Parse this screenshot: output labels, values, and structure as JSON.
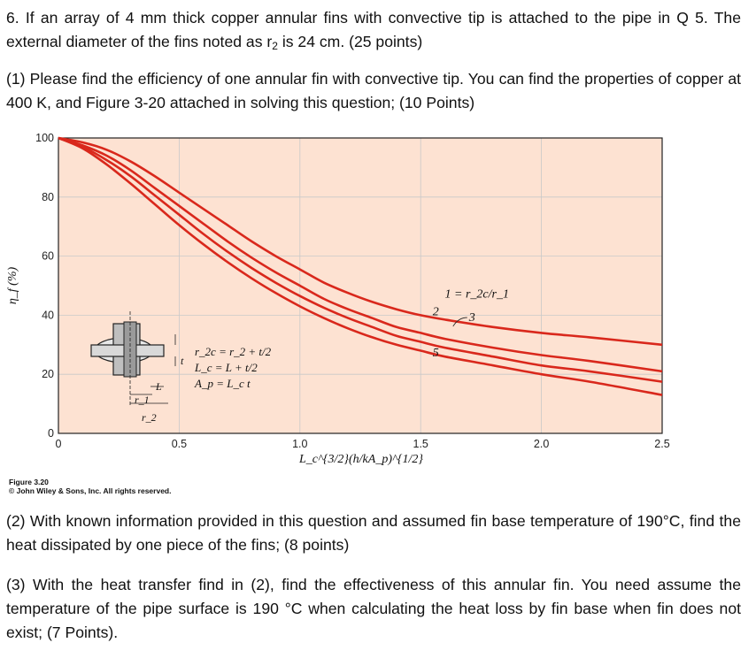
{
  "question": {
    "intro_a": "6. If an array of 4 mm thick copper annular fins with convective tip is attached to the pipe in Q 5. The external diameter of the fins noted as r",
    "intro_sub": "2",
    "intro_b": " is 24 cm. (25 points)",
    "part1": "(1) Please find the efficiency of one annular fin with convective tip. You can find the properties of copper at 400 K, and Figure 3-20 attached in solving this question;  (10 Points)",
    "part2": "(2) With known information provided in this question and assumed fin base temperature of 190°C, find the heat dissipated by one piece of the fins; (8 points)",
    "part3": "(3) With the heat transfer find in (2), find the effectiveness of this annular fin. You need assume the temperature of the pipe surface is 190 °C when calculating the heat loss by fin base when fin does not exist; (7 Points)."
  },
  "figure": {
    "label": "Figure 3.20",
    "credit": "© John Wiley & Sons, Inc. All rights reserved."
  },
  "chart_data": {
    "type": "line",
    "xlabel": "L_c^{3/2}(h/kA_p)^{1/2}",
    "ylabel": "η_f (%)",
    "xlim": [
      0,
      2.5
    ],
    "ylim": [
      0,
      100
    ],
    "x_ticks": [
      "0",
      "0.5",
      "1.0",
      "1.5",
      "2.0",
      "2.5"
    ],
    "y_ticks": [
      "0",
      "20",
      "40",
      "60",
      "80",
      "100"
    ],
    "grid": true,
    "background": "#fde2d2",
    "line_color": "#d9281c",
    "series": [
      {
        "name": "1",
        "x": [
          0,
          0.1,
          0.2,
          0.3,
          0.4,
          0.5,
          0.6,
          0.7,
          0.8,
          0.9,
          1.0,
          1.1,
          1.2,
          1.3,
          1.4,
          1.5,
          1.6,
          1.8,
          2.0,
          2.2,
          2.5
        ],
        "y": [
          100,
          98.5,
          96,
          92,
          87,
          81.5,
          76,
          70.5,
          65,
          60,
          55.5,
          51,
          47.5,
          44.5,
          42,
          40,
          38.5,
          36,
          34,
          32.5,
          30
        ]
      },
      {
        "name": "2",
        "x": [
          0,
          0.1,
          0.2,
          0.3,
          0.4,
          0.5,
          0.6,
          0.7,
          0.8,
          0.9,
          1.0,
          1.1,
          1.2,
          1.3,
          1.4,
          1.5,
          1.6,
          1.8,
          2.0,
          2.2,
          2.5
        ],
        "y": [
          100,
          97.5,
          94,
          89,
          83,
          77,
          71,
          65,
          59.5,
          54.5,
          50,
          45.5,
          42,
          39,
          36,
          34,
          32,
          29,
          26.5,
          24.5,
          21
        ]
      },
      {
        "name": "3",
        "x": [
          0,
          0.1,
          0.2,
          0.3,
          0.4,
          0.5,
          0.6,
          0.7,
          0.8,
          0.9,
          1.0,
          1.1,
          1.2,
          1.3,
          1.4,
          1.5,
          1.6,
          1.8,
          2.0,
          2.2,
          2.5
        ],
        "y": [
          100,
          97,
          92.5,
          87,
          80.5,
          74,
          67.5,
          61.5,
          56,
          51,
          46.5,
          42.5,
          39,
          36,
          33,
          31,
          29,
          26,
          23,
          21,
          17.5
        ]
      },
      {
        "name": "5",
        "x": [
          0,
          0.1,
          0.2,
          0.3,
          0.4,
          0.5,
          0.6,
          0.7,
          0.8,
          0.9,
          1.0,
          1.1,
          1.2,
          1.3,
          1.4,
          1.5,
          1.6,
          1.8,
          2.0,
          2.2,
          2.5
        ],
        "y": [
          100,
          96.5,
          91,
          84.5,
          77.5,
          70.5,
          64,
          58,
          52.5,
          47.5,
          43,
          39,
          35.5,
          32.5,
          30,
          28,
          26,
          23,
          20,
          17.5,
          13
        ]
      }
    ],
    "curve_labels": [
      {
        "text": "1 = r_2c/r_1",
        "x": 1.6,
        "y": 46
      },
      {
        "text": "2",
        "x": 1.55,
        "y": 40
      },
      {
        "text": "3",
        "x": 1.7,
        "y": 38
      },
      {
        "text": "5",
        "x": 1.55,
        "y": 26
      }
    ],
    "inset": {
      "formulas": [
        "r_2c = r_2 + t/2",
        "L_c = L + t/2",
        "A_p = L_c t"
      ],
      "dimension_labels": [
        "L",
        "t",
        "r_1",
        "r_2"
      ]
    }
  }
}
